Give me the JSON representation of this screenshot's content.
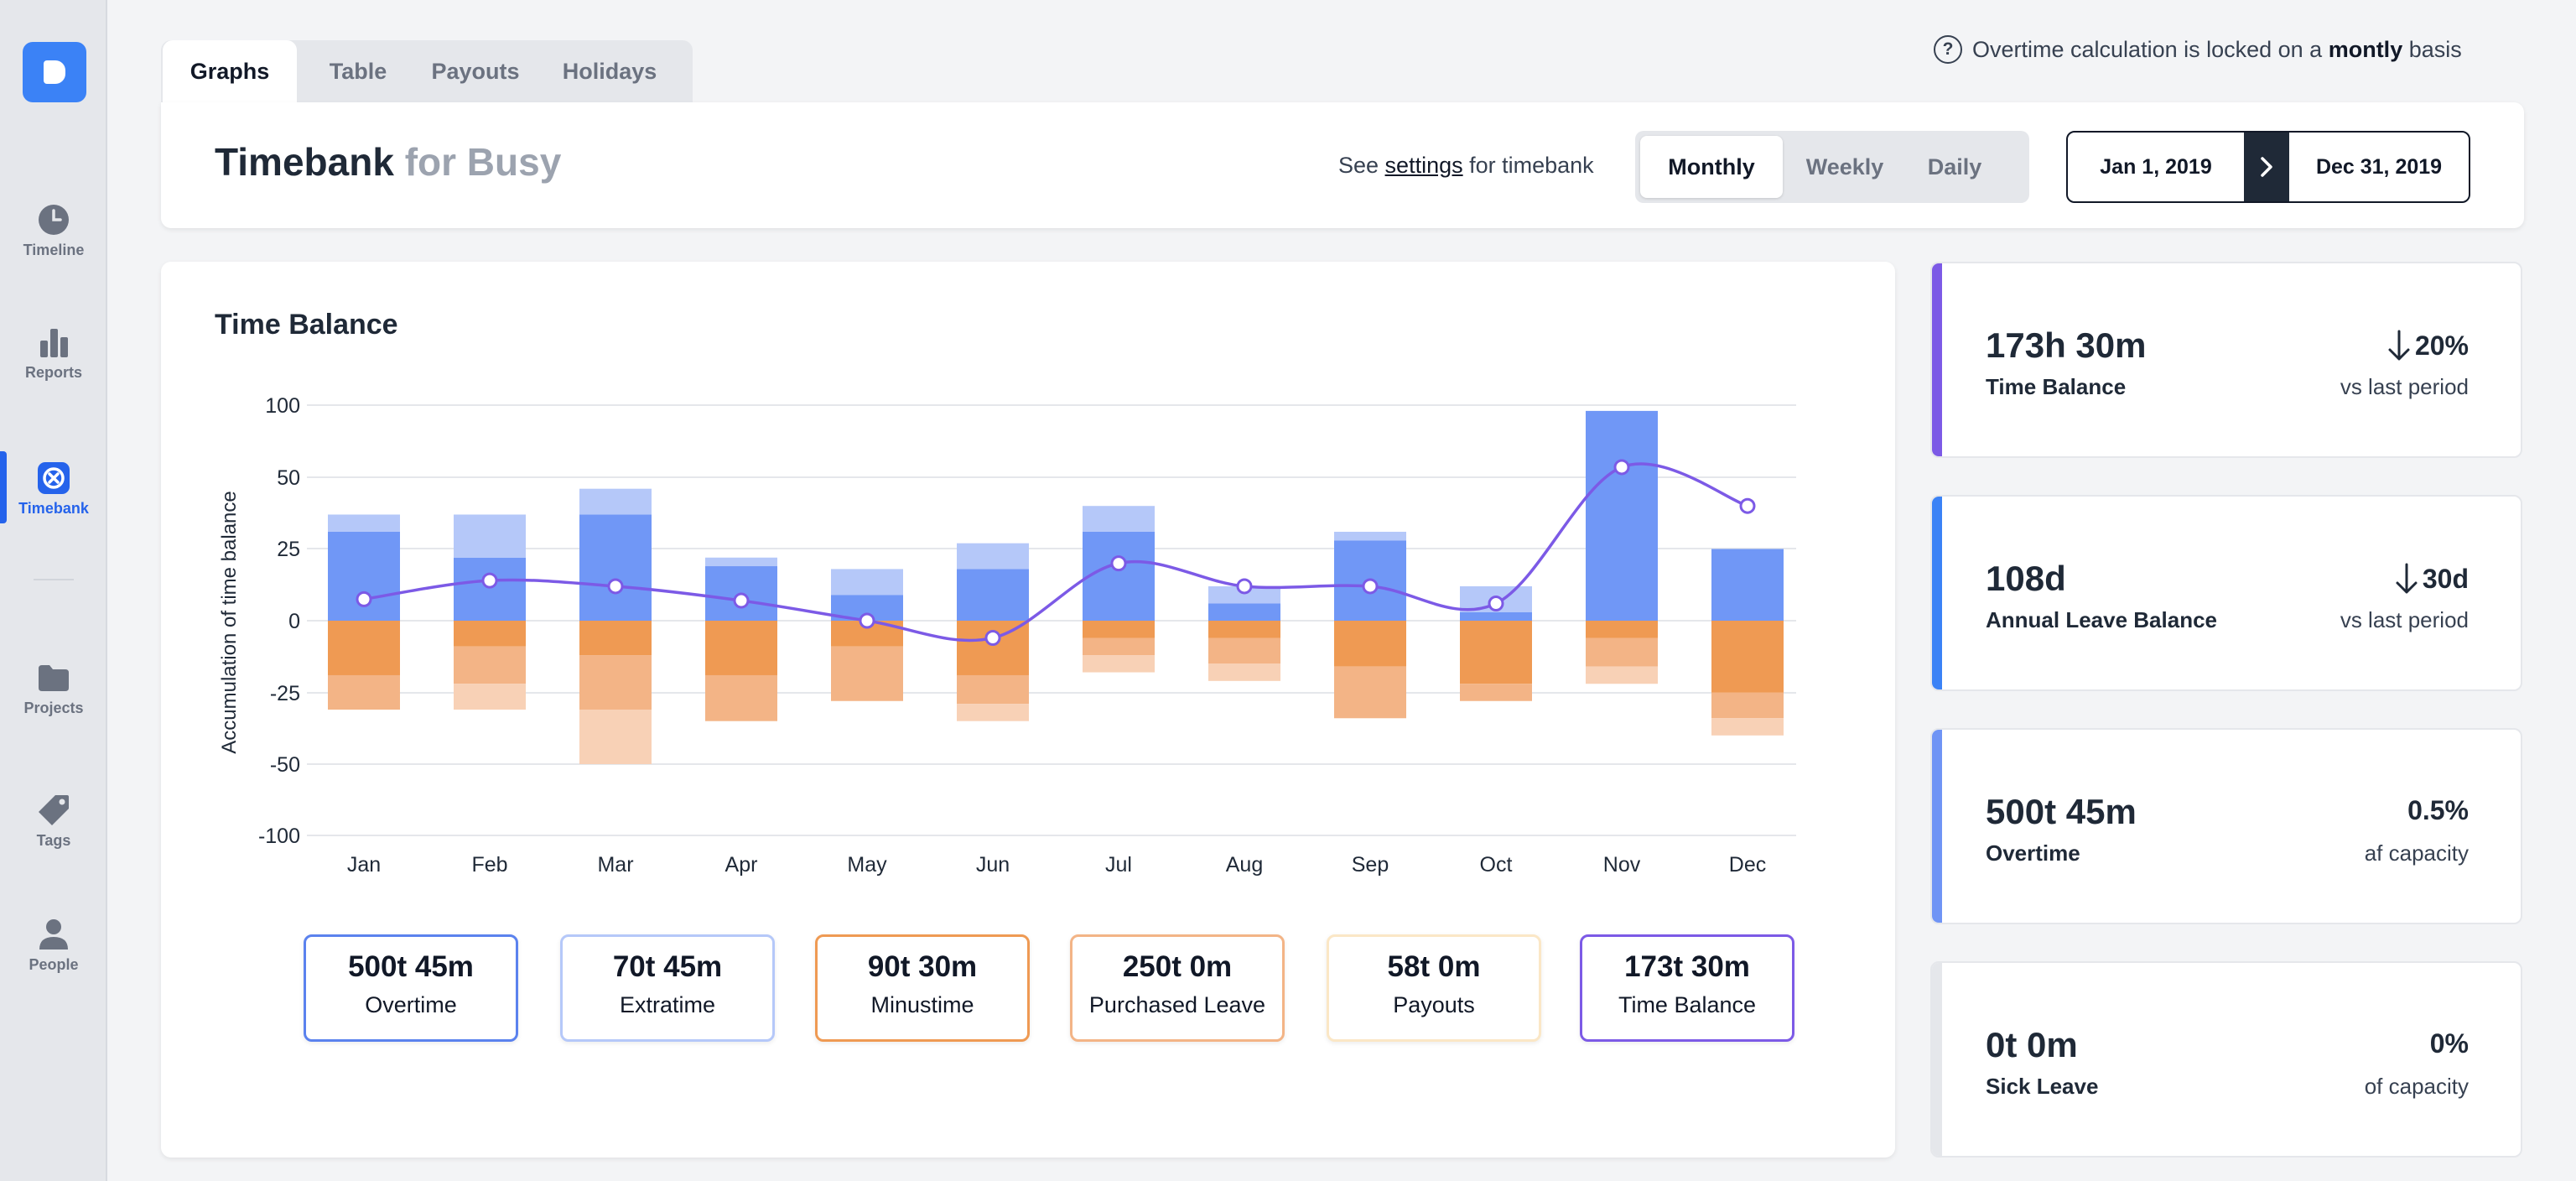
{
  "sidebar": {
    "items": [
      {
        "label": "Timeline",
        "icon": "clock-icon"
      },
      {
        "label": "Reports",
        "icon": "bar-chart-icon"
      },
      {
        "label": "Timebank",
        "icon": "timebank-icon"
      },
      {
        "label": "Projects",
        "icon": "folder-icon"
      },
      {
        "label": "Tags",
        "icon": "tag-icon"
      },
      {
        "label": "People",
        "icon": "person-icon"
      }
    ],
    "active": "Timebank"
  },
  "tabs": [
    {
      "label": "Graphs"
    },
    {
      "label": "Table"
    },
    {
      "label": "Payouts"
    },
    {
      "label": "Holidays"
    }
  ],
  "notice": {
    "prefix": "Overtime calculation is locked on a ",
    "bold": "montly",
    "suffix": " basis"
  },
  "header": {
    "title": "Timebank",
    "subtitle": "for Busy",
    "settings_prefix": "See ",
    "settings_link": "settings",
    "settings_suffix": " for timebank",
    "period_options": [
      "Monthly",
      "Weekly",
      "Daily"
    ],
    "period_selected": "Monthly",
    "date_start": "Jan 1, 2019",
    "date_end": "Dec 31, 2019"
  },
  "chart_title": "Time Balance",
  "chart_data": {
    "type": "bar",
    "categories": [
      "Jan",
      "Feb",
      "Mar",
      "Apr",
      "May",
      "Jun",
      "Jul",
      "Aug",
      "Sep",
      "Oct",
      "Nov",
      "Dec"
    ],
    "ylabel": "Accumulation of time balance",
    "y_ticks": [
      100,
      50,
      25,
      0,
      -25,
      -50,
      -100
    ],
    "series": [
      {
        "name": "Overtime",
        "values": [
          31,
          22,
          37,
          19,
          9,
          18,
          31,
          6,
          28,
          3,
          96,
          25
        ]
      },
      {
        "name": "Extratime",
        "values": [
          6,
          15,
          9,
          3,
          9,
          9,
          9,
          6,
          3,
          9,
          0,
          0
        ]
      },
      {
        "name": "Minustime",
        "values": [
          -19,
          -9,
          -12,
          -19,
          -9,
          -19,
          -6,
          -6,
          -16,
          -22,
          -6,
          -25
        ]
      },
      {
        "name": "Purchased Leave",
        "values": [
          -12,
          -13,
          -19,
          -16,
          -19,
          -10,
          -6,
          -9,
          -18,
          -6,
          -10,
          -9
        ]
      },
      {
        "name": "Payouts",
        "values": [
          0,
          -9,
          -19,
          0,
          0,
          -6,
          -6,
          -6,
          0,
          0,
          -6,
          -6
        ]
      },
      {
        "name": "Time Balance",
        "values": [
          7.5,
          14,
          12,
          7,
          0,
          -6,
          20,
          12,
          12,
          6,
          57,
          40
        ]
      }
    ],
    "colors": {
      "Overtime": "#7097f6",
      "Extratime": "#b5c8f9",
      "Minustime": "#ef9a53",
      "Purchased Leave": "#f3b486",
      "Payouts": "#f8d1b6",
      "Time Balance": "#7c5ae6"
    },
    "grid": true
  },
  "legend": [
    {
      "value": "500t 45m",
      "label": "Overtime",
      "color": "#5b82ee"
    },
    {
      "value": "70t 45m",
      "label": "Extratime",
      "color": "#b5c8f9"
    },
    {
      "value": "90t 30m",
      "label": "Minustime",
      "color": "#ef9a53"
    },
    {
      "value": "250t 0m",
      "label": "Purchased Leave",
      "color": "#f3b486"
    },
    {
      "value": "58t 0m",
      "label": "Payouts",
      "color": "#fbe7c6"
    },
    {
      "value": "173t 30m",
      "label": "Time Balance",
      "color": "#7c5ae6"
    }
  ],
  "stats": [
    {
      "value": "173h 30m",
      "label": "Time Balance",
      "delta": "20%",
      "delta_arrow": true,
      "compare": "vs last period",
      "color": "#7c5ae6"
    },
    {
      "value": "108d",
      "label": "Annual Leave Balance",
      "delta": "30d",
      "delta_arrow": true,
      "compare": "vs last period",
      "color": "#3b82f6"
    },
    {
      "value": "500t 45m",
      "label": "Overtime",
      "delta": "0.5%",
      "delta_arrow": false,
      "compare": "af capacity",
      "color": "#6f94f5"
    },
    {
      "value": "0t 0m",
      "label": "Sick Leave",
      "delta": "0%",
      "delta_arrow": false,
      "compare": "of capacity",
      "color": "#e5e7eb"
    }
  ]
}
